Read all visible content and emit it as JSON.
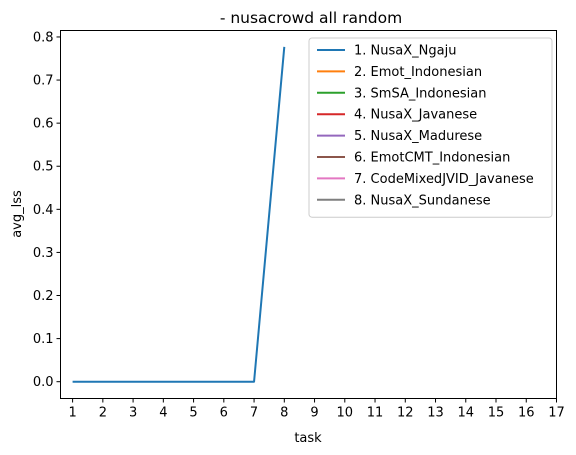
{
  "chart_data": {
    "type": "line",
    "title": "- nusacrowd all random",
    "xlabel": "task",
    "ylabel": "avg_lss",
    "x_ticks": [
      "1",
      "2",
      "3",
      "4",
      "5",
      "6",
      "7",
      "8",
      "9",
      "10",
      "11",
      "12",
      "13",
      "14",
      "15",
      "16",
      "17"
    ],
    "y_ticks": [
      "0.0",
      "0.1",
      "0.2",
      "0.3",
      "0.4",
      "0.5",
      "0.6",
      "0.7",
      "0.8"
    ],
    "xlim": [
      0.6,
      17
    ],
    "ylim": [
      -0.039,
      0.815
    ],
    "grid": false,
    "legend_position": "top-right",
    "series": [
      {
        "name": "1. NusaX_Ngaju",
        "color": "#1f77b4",
        "x": [
          1,
          2,
          3,
          4,
          5,
          6,
          7,
          8
        ],
        "y": [
          0,
          0,
          0,
          0,
          0,
          0,
          0,
          0.777
        ]
      },
      {
        "name": "2. Emot_Indonesian",
        "color": "#ff7f0e",
        "x": [],
        "y": []
      },
      {
        "name": "3. SmSA_Indonesian",
        "color": "#2ca02c",
        "x": [],
        "y": []
      },
      {
        "name": "4. NusaX_Javanese",
        "color": "#d62728",
        "x": [],
        "y": []
      },
      {
        "name": "5. NusaX_Madurese",
        "color": "#9467bd",
        "x": [],
        "y": []
      },
      {
        "name": "6. EmotCMT_Indonesian",
        "color": "#8c564b",
        "x": [],
        "y": []
      },
      {
        "name": "7. CodeMixedJVID_Javanese",
        "color": "#e377c2",
        "x": [],
        "y": []
      },
      {
        "name": "8. NusaX_Sundanese",
        "color": "#7f7f7f",
        "x": [],
        "y": []
      }
    ]
  }
}
